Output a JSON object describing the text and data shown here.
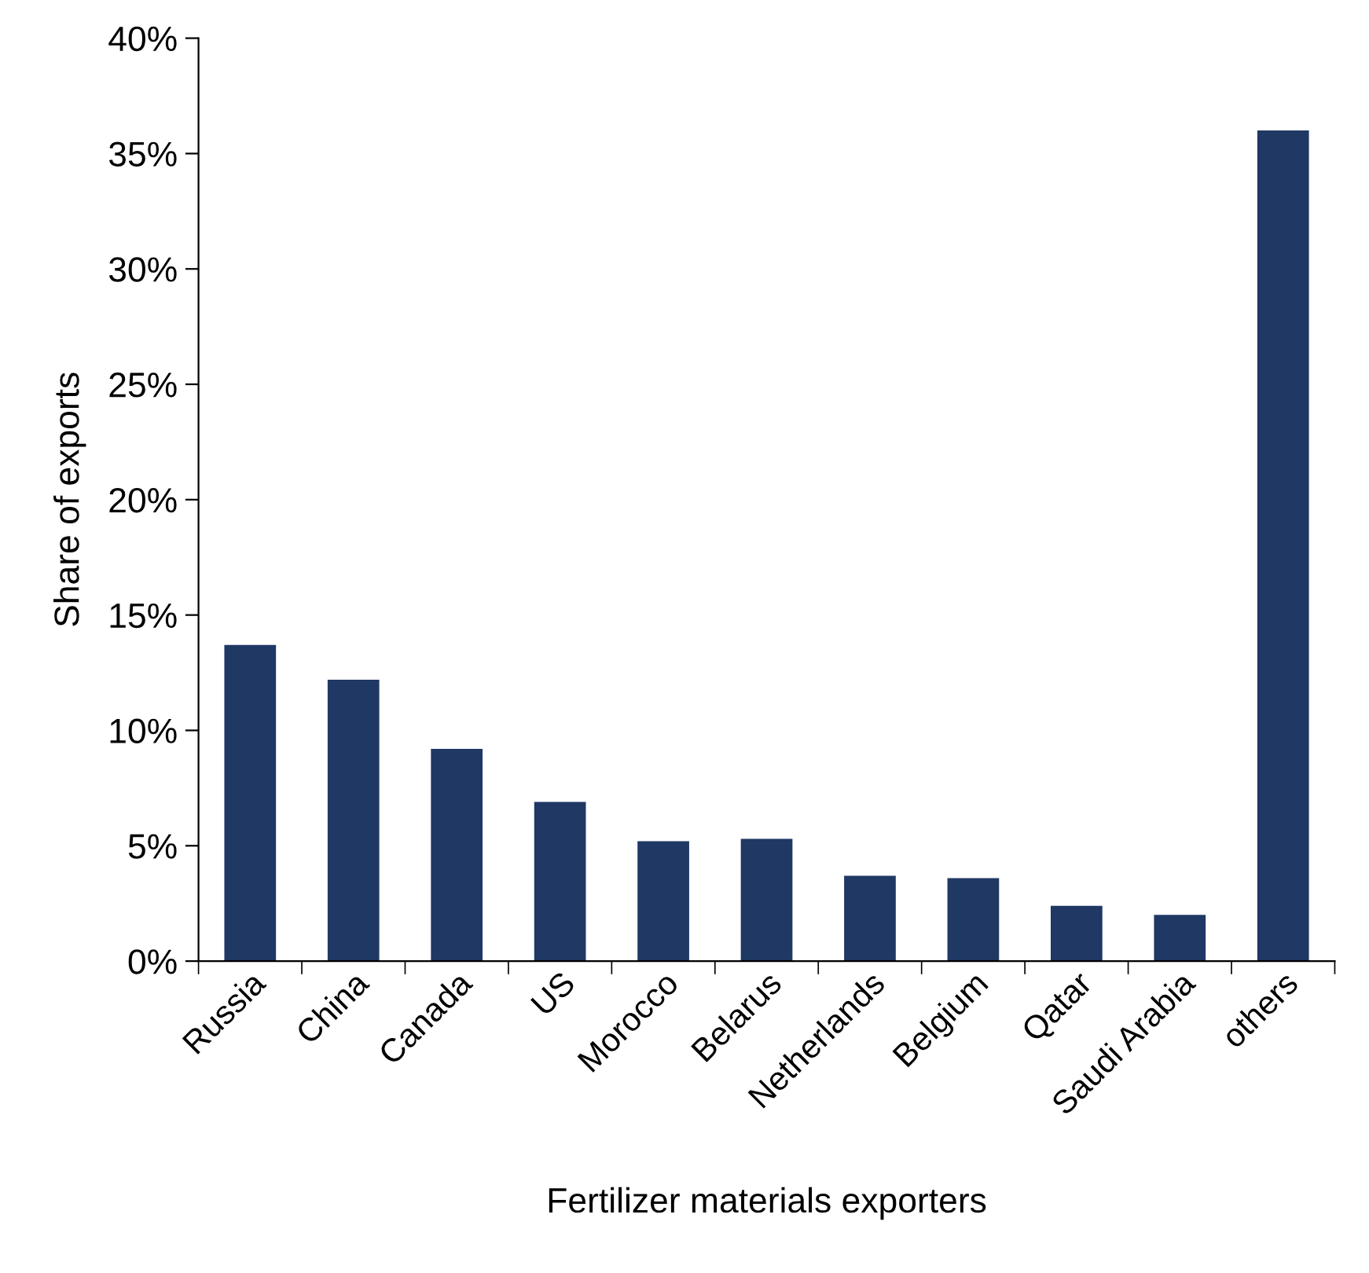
{
  "chart_data": {
    "type": "bar",
    "xlabel": "Fertilizer materials exporters",
    "ylabel": "Share of exports",
    "categories": [
      "Russia",
      "China",
      "Canada",
      "US",
      "Morocco",
      "Belarus",
      "Netherlands",
      "Belgium",
      "Qatar",
      "Saudi Arabia",
      "others"
    ],
    "values": [
      13.7,
      12.2,
      9.2,
      6.9,
      5.2,
      5.3,
      3.7,
      3.6,
      2.4,
      2.0,
      36.0
    ],
    "color": "#1f3864",
    "ylim": [
      0,
      40
    ],
    "yticks": [
      {
        "value": 0,
        "label": "0%"
      },
      {
        "value": 5,
        "label": "5%"
      },
      {
        "value": 10,
        "label": "10%"
      },
      {
        "value": 15,
        "label": "15%"
      },
      {
        "value": 20,
        "label": "20%"
      },
      {
        "value": 25,
        "label": "25%"
      },
      {
        "value": 30,
        "label": "30%"
      },
      {
        "value": 35,
        "label": "35%"
      },
      {
        "value": 40,
        "label": "40%"
      }
    ],
    "grid": false,
    "legend": false
  }
}
